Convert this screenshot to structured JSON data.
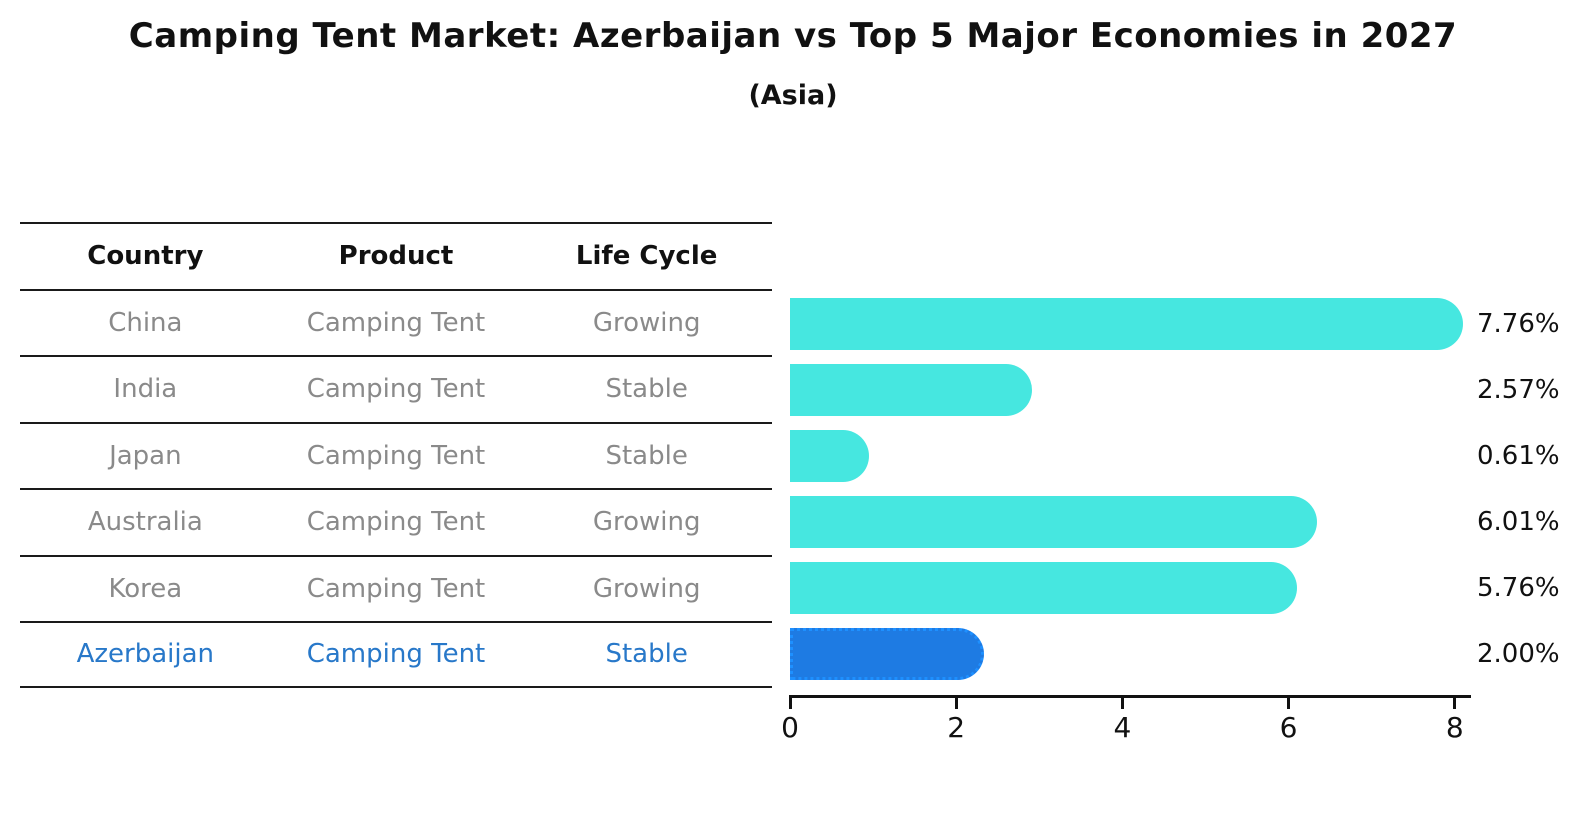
{
  "title": "Camping Tent Market: Azerbaijan vs Top 5 Major Economies in 2027",
  "subtitle": "(Asia)",
  "table": {
    "columns": [
      "Country",
      "Product",
      "Life Cycle"
    ],
    "rows": [
      {
        "country": "China",
        "product": "Camping Tent",
        "life_cycle": "Growing",
        "highlight": false
      },
      {
        "country": "India",
        "product": "Camping Tent",
        "life_cycle": "Stable",
        "highlight": false
      },
      {
        "country": "Japan",
        "product": "Camping Tent",
        "life_cycle": "Stable",
        "highlight": false
      },
      {
        "country": "Australia",
        "product": "Camping Tent",
        "life_cycle": "Growing",
        "highlight": false
      },
      {
        "country": "Korea",
        "product": "Camping Tent",
        "life_cycle": "Growing",
        "highlight": false
      },
      {
        "country": "Azerbaijan",
        "product": "Camping Tent",
        "life_cycle": "Stable",
        "highlight": true
      }
    ]
  },
  "chart_data": {
    "type": "bar",
    "orientation": "horizontal",
    "title": "Camping Tent Market: Azerbaijan vs Top 5 Major Economies in 2027",
    "subtitle": "(Asia)",
    "categories": [
      "China",
      "India",
      "Japan",
      "Australia",
      "Korea",
      "Azerbaijan"
    ],
    "values": [
      7.76,
      2.57,
      0.61,
      6.01,
      5.76,
      2.0
    ],
    "value_labels": [
      "7.76%",
      "2.57%",
      "0.61%",
      "6.01%",
      "5.76%",
      "2.00%"
    ],
    "highlight_category": "Azerbaijan",
    "x_ticks": [
      0,
      2,
      4,
      6,
      8
    ],
    "xlim": [
      0,
      8.2
    ],
    "grid": false,
    "legend": false
  },
  "colors": {
    "bar_default": "#46E7E0",
    "bar_highlight": "#1E7BE3",
    "bar_highlight_border": "#1E90FF",
    "header_text": "#111111",
    "row_text": "#8a8a8a",
    "highlight_text": "#2878C9",
    "value_label": "#111111",
    "axis": "#111111"
  }
}
